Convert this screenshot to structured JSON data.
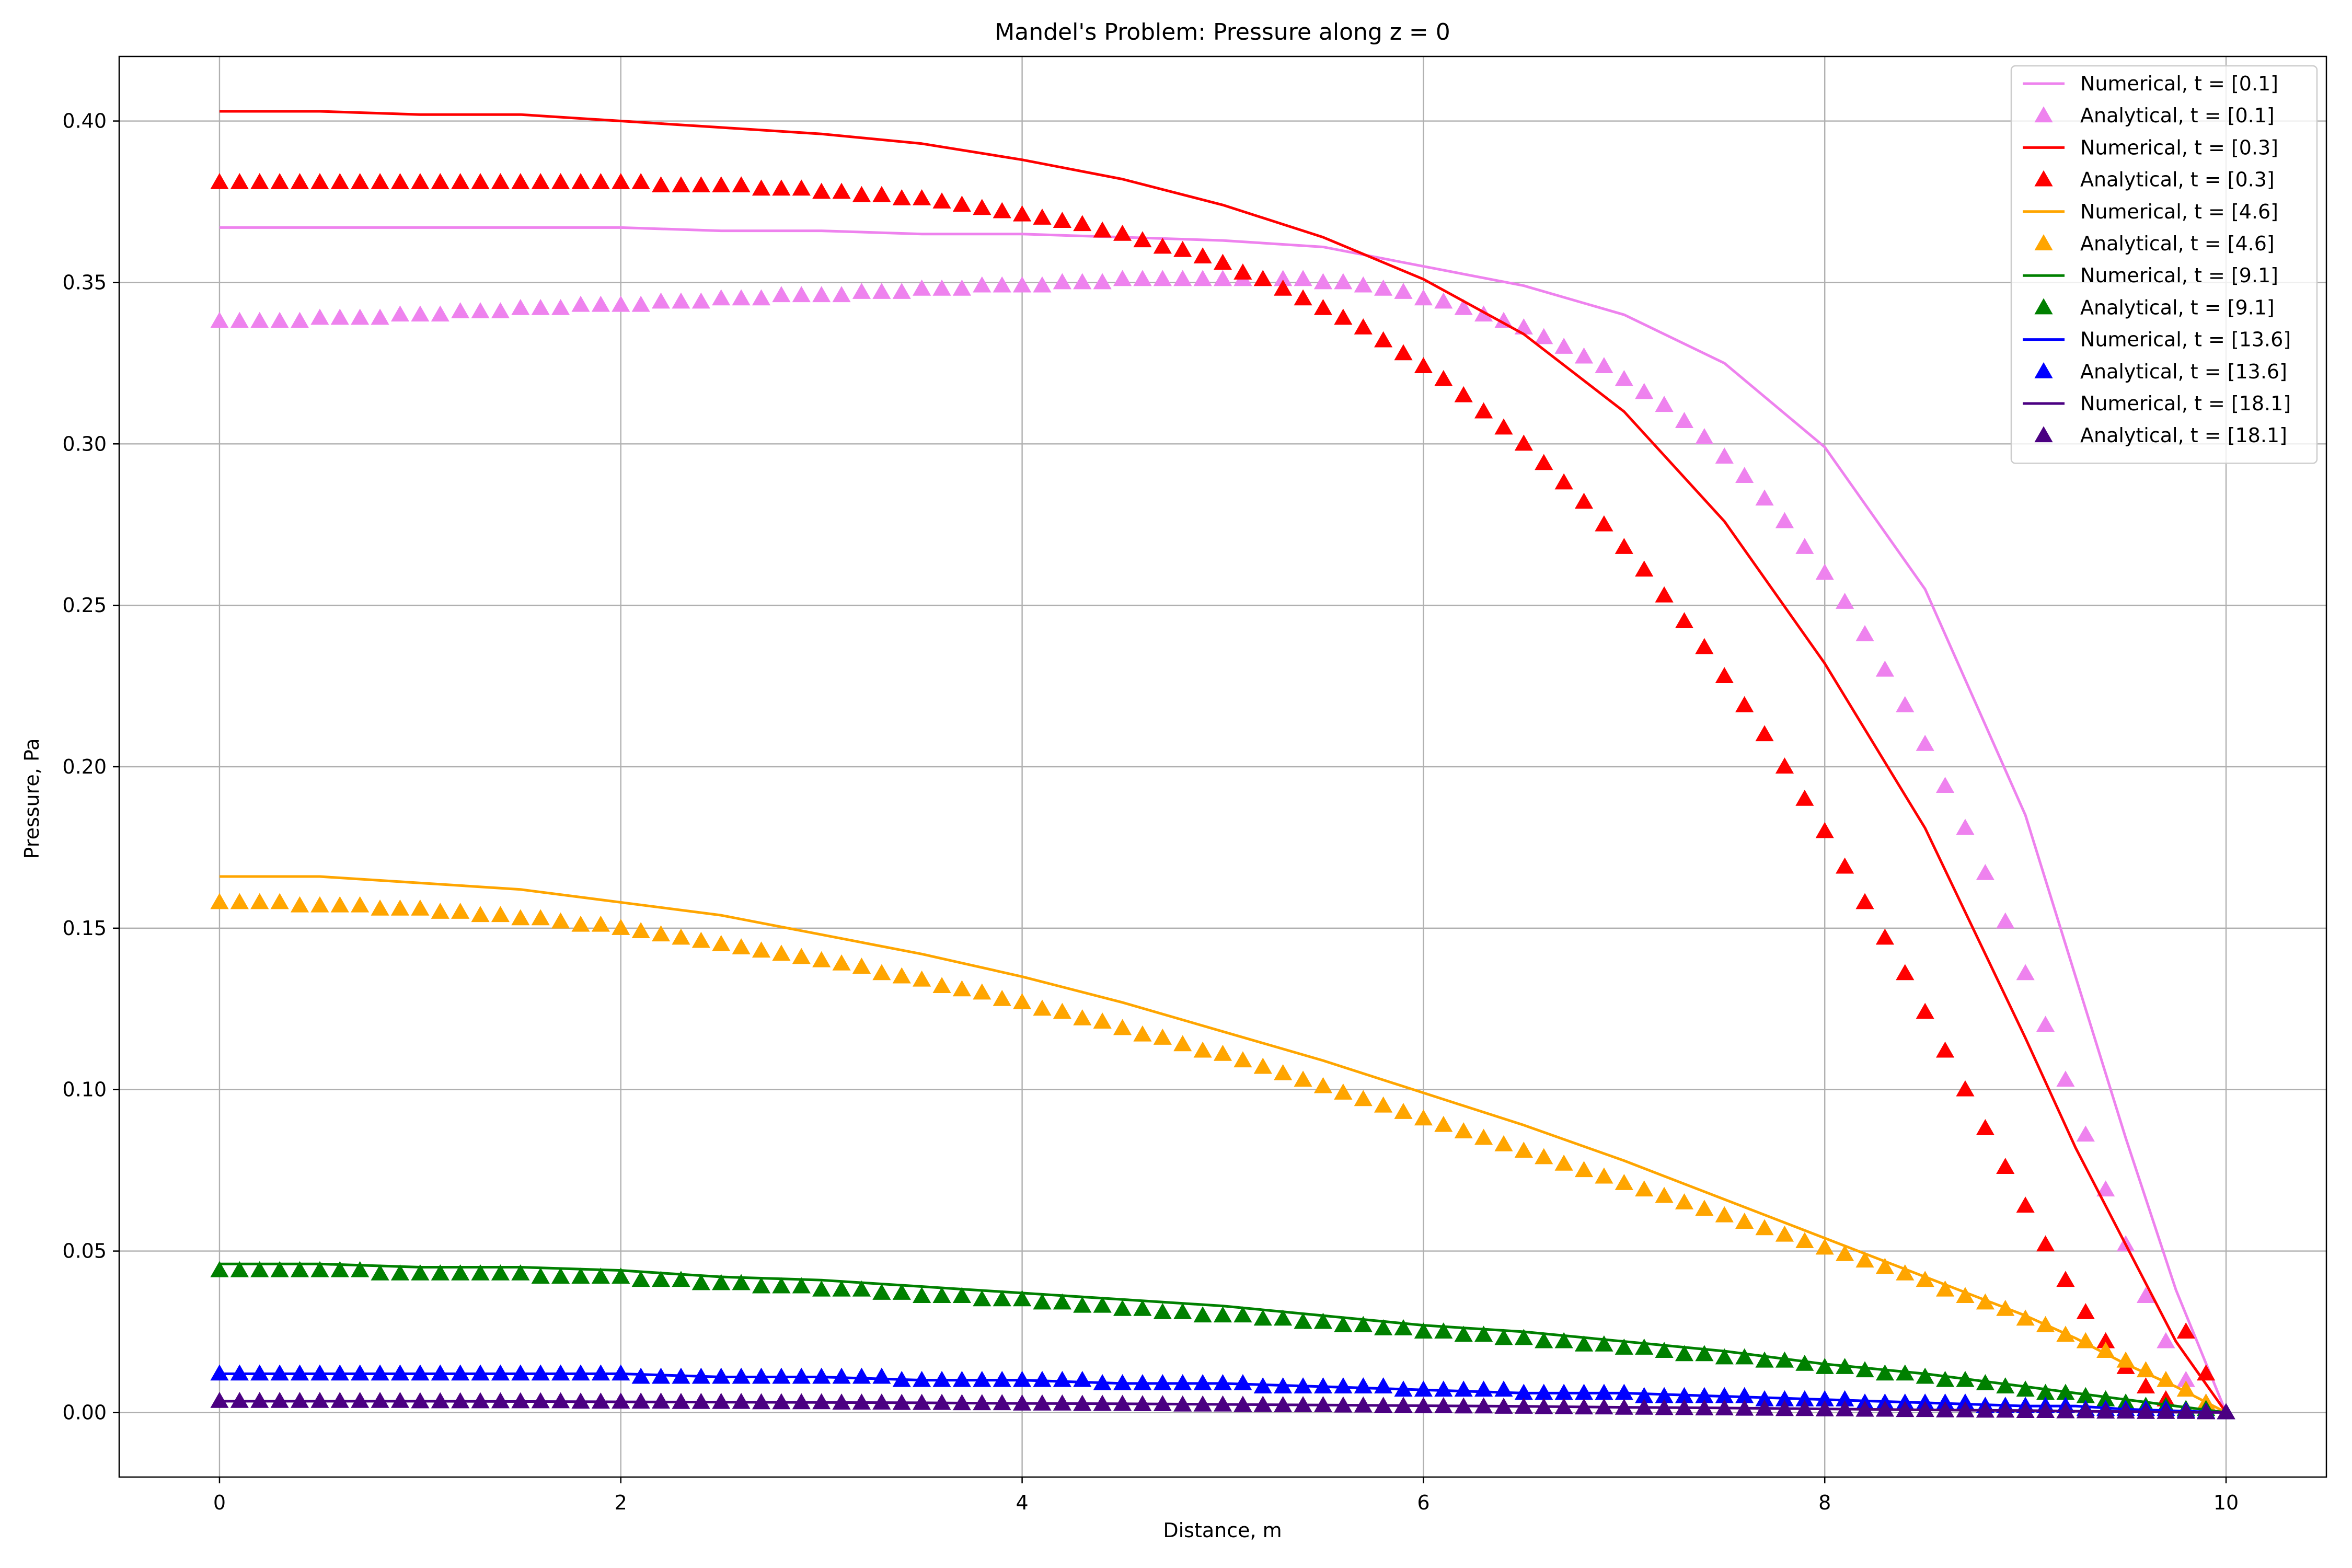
{
  "chart_data": {
    "type": "line",
    "title": "Mandel's Problem: Pressure along z = 0",
    "xlabel": "Distance, m",
    "ylabel": "Pressure, Pa",
    "xlim": [
      -0.5,
      10.5
    ],
    "ylim": [
      -0.02,
      0.42
    ],
    "xticks": [
      0,
      2,
      4,
      6,
      8,
      10
    ],
    "yticks": [
      0.0,
      0.05,
      0.1,
      0.15,
      0.2,
      0.25,
      0.3,
      0.35,
      0.4
    ],
    "xtick_labels": [
      "0",
      "2",
      "4",
      "6",
      "8",
      "10"
    ],
    "ytick_labels": [
      "0.00",
      "0.05",
      "0.10",
      "0.15",
      "0.20",
      "0.25",
      "0.30",
      "0.35",
      "0.40"
    ],
    "grid": true,
    "legend_position": "top-right",
    "numerical_x": [
      0,
      0.5,
      1,
      1.5,
      2,
      2.5,
      3,
      3.5,
      4,
      4.5,
      5,
      5.5,
      6,
      6.5,
      7,
      7.5,
      8,
      8.5,
      9,
      9.25,
      9.5,
      9.75,
      10
    ],
    "analytical_x": [
      0,
      0.1,
      0.2,
      0.3,
      0.4,
      0.5,
      0.6,
      0.7,
      0.8,
      0.9,
      1.0,
      1.1,
      1.2,
      1.3,
      1.4,
      1.5,
      1.6,
      1.7,
      1.8,
      1.9,
      2.0,
      2.1,
      2.2,
      2.3,
      2.4,
      2.5,
      2.6,
      2.7,
      2.8,
      2.9,
      3.0,
      3.1,
      3.2,
      3.3,
      3.4,
      3.5,
      3.6,
      3.7,
      3.8,
      3.9,
      4.0,
      4.1,
      4.2,
      4.3,
      4.4,
      4.5,
      4.6,
      4.7,
      4.8,
      4.9,
      5.0,
      5.1,
      5.2,
      5.3,
      5.4,
      5.5,
      5.6,
      5.7,
      5.8,
      5.9,
      6.0,
      6.1,
      6.2,
      6.3,
      6.4,
      6.5,
      6.6,
      6.7,
      6.8,
      6.9,
      7.0,
      7.1,
      7.2,
      7.3,
      7.4,
      7.5,
      7.6,
      7.7,
      7.8,
      7.9,
      8.0,
      8.1,
      8.2,
      8.3,
      8.4,
      8.5,
      8.6,
      8.7,
      8.8,
      8.9,
      9.0,
      9.1,
      9.2,
      9.3,
      9.4,
      9.5,
      9.6,
      9.7,
      9.8,
      9.9,
      10.0
    ],
    "series": [
      {
        "color": "#ee82ee",
        "numerical_label": "Numerical, t = [0.1]",
        "analytical_label": "Analytical, t = [0.1]",
        "numerical_y": [
          0.367,
          0.367,
          0.367,
          0.367,
          0.367,
          0.366,
          0.366,
          0.365,
          0.365,
          0.364,
          0.363,
          0.361,
          0.355,
          0.349,
          0.34,
          0.325,
          0.299,
          0.255,
          0.185,
          0.135,
          0.085,
          0.038,
          0.0
        ],
        "analytical_y": [
          0.338,
          0.338,
          0.338,
          0.338,
          0.338,
          0.339,
          0.339,
          0.339,
          0.339,
          0.34,
          0.34,
          0.34,
          0.341,
          0.341,
          0.341,
          0.342,
          0.342,
          0.342,
          0.343,
          0.343,
          0.343,
          0.343,
          0.344,
          0.344,
          0.344,
          0.345,
          0.345,
          0.345,
          0.346,
          0.346,
          0.346,
          0.346,
          0.347,
          0.347,
          0.347,
          0.348,
          0.348,
          0.348,
          0.349,
          0.349,
          0.349,
          0.349,
          0.35,
          0.35,
          0.35,
          0.351,
          0.351,
          0.351,
          0.351,
          0.351,
          0.351,
          0.351,
          0.351,
          0.351,
          0.351,
          0.35,
          0.35,
          0.349,
          0.348,
          0.347,
          0.345,
          0.344,
          0.342,
          0.34,
          0.338,
          0.336,
          0.333,
          0.33,
          0.327,
          0.324,
          0.32,
          0.316,
          0.312,
          0.307,
          0.302,
          0.296,
          0.29,
          0.283,
          0.276,
          0.268,
          0.26,
          0.251,
          0.241,
          0.23,
          0.219,
          0.207,
          0.194,
          0.181,
          0.167,
          0.152,
          0.136,
          0.12,
          0.103,
          0.086,
          0.069,
          0.052,
          0.036,
          0.022,
          0.01,
          0.003,
          0.0
        ]
      },
      {
        "color": "#ff0000",
        "numerical_label": "Numerical, t = [0.3]",
        "analytical_label": "Analytical, t = [0.3]",
        "numerical_y": [
          0.403,
          0.403,
          0.402,
          0.402,
          0.4,
          0.398,
          0.396,
          0.393,
          0.388,
          0.382,
          0.374,
          0.364,
          0.351,
          0.334,
          0.31,
          0.276,
          0.232,
          0.181,
          0.116,
          0.082,
          0.052,
          0.022,
          0.0
        ],
        "analytical_y": [
          0.381,
          0.381,
          0.381,
          0.381,
          0.381,
          0.381,
          0.381,
          0.381,
          0.381,
          0.381,
          0.381,
          0.381,
          0.381,
          0.381,
          0.381,
          0.381,
          0.381,
          0.381,
          0.381,
          0.381,
          0.381,
          0.381,
          0.38,
          0.38,
          0.38,
          0.38,
          0.38,
          0.379,
          0.379,
          0.379,
          0.378,
          0.378,
          0.377,
          0.377,
          0.376,
          0.376,
          0.375,
          0.374,
          0.373,
          0.372,
          0.371,
          0.37,
          0.369,
          0.368,
          0.366,
          0.365,
          0.363,
          0.361,
          0.36,
          0.358,
          0.356,
          0.353,
          0.351,
          0.348,
          0.345,
          0.342,
          0.339,
          0.336,
          0.332,
          0.328,
          0.324,
          0.32,
          0.315,
          0.31,
          0.305,
          0.3,
          0.294,
          0.288,
          0.282,
          0.275,
          0.268,
          0.261,
          0.253,
          0.245,
          0.237,
          0.228,
          0.219,
          0.21,
          0.2,
          0.19,
          0.18,
          0.169,
          0.158,
          0.147,
          0.136,
          0.124,
          0.112,
          0.1,
          0.088,
          0.076,
          0.064,
          0.052,
          0.041,
          0.031,
          0.022,
          0.014,
          0.008,
          0.004,
          0.025,
          0.012,
          0.0
        ]
      },
      {
        "color": "#ffa500",
        "numerical_label": "Numerical, t = [4.6]",
        "analytical_label": "Analytical, t = [4.6]",
        "numerical_y": [
          0.166,
          0.166,
          0.164,
          0.162,
          0.158,
          0.154,
          0.148,
          0.142,
          0.135,
          0.127,
          0.118,
          0.109,
          0.099,
          0.089,
          0.078,
          0.066,
          0.054,
          0.042,
          0.03,
          0.023,
          0.015,
          0.008,
          0.0
        ],
        "analytical_y": [
          0.158,
          0.158,
          0.158,
          0.158,
          0.157,
          0.157,
          0.157,
          0.157,
          0.156,
          0.156,
          0.156,
          0.155,
          0.155,
          0.154,
          0.154,
          0.153,
          0.153,
          0.152,
          0.151,
          0.151,
          0.15,
          0.149,
          0.148,
          0.147,
          0.146,
          0.145,
          0.144,
          0.143,
          0.142,
          0.141,
          0.14,
          0.139,
          0.138,
          0.136,
          0.135,
          0.134,
          0.132,
          0.131,
          0.13,
          0.128,
          0.127,
          0.125,
          0.124,
          0.122,
          0.121,
          0.119,
          0.117,
          0.116,
          0.114,
          0.112,
          0.111,
          0.109,
          0.107,
          0.105,
          0.103,
          0.101,
          0.099,
          0.097,
          0.095,
          0.093,
          0.091,
          0.089,
          0.087,
          0.085,
          0.083,
          0.081,
          0.079,
          0.077,
          0.075,
          0.073,
          0.071,
          0.069,
          0.067,
          0.065,
          0.063,
          0.061,
          0.059,
          0.057,
          0.055,
          0.053,
          0.051,
          0.049,
          0.047,
          0.045,
          0.043,
          0.041,
          0.038,
          0.036,
          0.034,
          0.032,
          0.029,
          0.027,
          0.024,
          0.022,
          0.019,
          0.016,
          0.013,
          0.01,
          0.007,
          0.003,
          0.0
        ]
      },
      {
        "color": "#008000",
        "numerical_label": "Numerical, t = [9.1]",
        "analytical_label": "Analytical, t = [9.1]",
        "numerical_y": [
          0.046,
          0.046,
          0.045,
          0.045,
          0.044,
          0.042,
          0.041,
          0.039,
          0.037,
          0.035,
          0.033,
          0.03,
          0.027,
          0.025,
          0.022,
          0.019,
          0.015,
          0.012,
          0.008,
          0.006,
          0.004,
          0.002,
          0.0
        ],
        "analytical_y": [
          0.044,
          0.044,
          0.044,
          0.044,
          0.044,
          0.044,
          0.044,
          0.044,
          0.043,
          0.043,
          0.043,
          0.043,
          0.043,
          0.043,
          0.043,
          0.043,
          0.042,
          0.042,
          0.042,
          0.042,
          0.042,
          0.041,
          0.041,
          0.041,
          0.04,
          0.04,
          0.04,
          0.039,
          0.039,
          0.039,
          0.038,
          0.038,
          0.038,
          0.037,
          0.037,
          0.036,
          0.036,
          0.036,
          0.035,
          0.035,
          0.035,
          0.034,
          0.034,
          0.033,
          0.033,
          0.032,
          0.032,
          0.031,
          0.031,
          0.03,
          0.03,
          0.03,
          0.029,
          0.029,
          0.028,
          0.028,
          0.027,
          0.027,
          0.026,
          0.026,
          0.025,
          0.025,
          0.024,
          0.024,
          0.023,
          0.023,
          0.022,
          0.022,
          0.021,
          0.021,
          0.02,
          0.02,
          0.019,
          0.018,
          0.018,
          0.017,
          0.017,
          0.016,
          0.016,
          0.015,
          0.014,
          0.014,
          0.013,
          0.012,
          0.012,
          0.011,
          0.01,
          0.01,
          0.009,
          0.008,
          0.007,
          0.006,
          0.006,
          0.005,
          0.004,
          0.003,
          0.002,
          0.002,
          0.001,
          0.001,
          0.0
        ]
      },
      {
        "color": "#0000ff",
        "numerical_label": "Numerical, t = [13.6]",
        "analytical_label": "Analytical, t = [13.6]",
        "numerical_y": [
          0.012,
          0.012,
          0.012,
          0.012,
          0.012,
          0.011,
          0.011,
          0.01,
          0.01,
          0.009,
          0.009,
          0.008,
          0.007,
          0.006,
          0.006,
          0.005,
          0.004,
          0.003,
          0.002,
          0.002,
          0.001,
          0.0005,
          0.0
        ],
        "analytical_y": [
          0.012,
          0.012,
          0.012,
          0.012,
          0.012,
          0.012,
          0.012,
          0.012,
          0.012,
          0.012,
          0.012,
          0.012,
          0.012,
          0.012,
          0.012,
          0.012,
          0.012,
          0.012,
          0.012,
          0.012,
          0.012,
          0.011,
          0.011,
          0.011,
          0.011,
          0.011,
          0.011,
          0.011,
          0.011,
          0.011,
          0.011,
          0.011,
          0.011,
          0.011,
          0.01,
          0.01,
          0.01,
          0.01,
          0.01,
          0.01,
          0.01,
          0.01,
          0.01,
          0.01,
          0.009,
          0.009,
          0.009,
          0.009,
          0.009,
          0.009,
          0.009,
          0.009,
          0.008,
          0.008,
          0.008,
          0.008,
          0.008,
          0.008,
          0.008,
          0.007,
          0.007,
          0.007,
          0.007,
          0.007,
          0.007,
          0.006,
          0.006,
          0.006,
          0.006,
          0.006,
          0.006,
          0.005,
          0.005,
          0.005,
          0.005,
          0.005,
          0.005,
          0.004,
          0.004,
          0.004,
          0.004,
          0.004,
          0.003,
          0.003,
          0.003,
          0.003,
          0.003,
          0.003,
          0.002,
          0.002,
          0.002,
          0.002,
          0.002,
          0.001,
          0.001,
          0.001,
          0.001,
          0.001,
          0.0005,
          0.0002,
          0.0
        ]
      },
      {
        "color": "#4b0082",
        "numerical_label": "Numerical, t = [18.1]",
        "analytical_label": "Analytical, t = [18.1]",
        "numerical_y": [
          0.0035,
          0.0035,
          0.0035,
          0.0034,
          0.0033,
          0.0032,
          0.0031,
          0.003,
          0.0028,
          0.0027,
          0.0025,
          0.0023,
          0.0021,
          0.0019,
          0.0016,
          0.0014,
          0.0011,
          0.0008,
          0.0006,
          0.0004,
          0.0003,
          0.0001,
          0.0
        ],
        "analytical_y": [
          0.0035,
          0.0035,
          0.0035,
          0.0035,
          0.0035,
          0.0035,
          0.0035,
          0.0035,
          0.0035,
          0.0035,
          0.0034,
          0.0034,
          0.0034,
          0.0034,
          0.0034,
          0.0034,
          0.0034,
          0.0034,
          0.0033,
          0.0033,
          0.0033,
          0.0033,
          0.0033,
          0.0032,
          0.0032,
          0.0032,
          0.0032,
          0.0031,
          0.0031,
          0.0031,
          0.0031,
          0.003,
          0.003,
          0.003,
          0.0029,
          0.0029,
          0.0029,
          0.0028,
          0.0028,
          0.0028,
          0.0027,
          0.0027,
          0.0027,
          0.0026,
          0.0026,
          0.0026,
          0.0025,
          0.0025,
          0.0024,
          0.0024,
          0.0024,
          0.0023,
          0.0023,
          0.0022,
          0.0022,
          0.0022,
          0.0021,
          0.0021,
          0.002,
          0.002,
          0.0019,
          0.0019,
          0.0018,
          0.0018,
          0.0017,
          0.0017,
          0.0016,
          0.0016,
          0.0015,
          0.0015,
          0.0014,
          0.0014,
          0.0013,
          0.0013,
          0.0012,
          0.0012,
          0.0011,
          0.0011,
          0.001,
          0.001,
          0.0009,
          0.0009,
          0.0008,
          0.0008,
          0.0007,
          0.0007,
          0.0006,
          0.0006,
          0.0005,
          0.0005,
          0.0004,
          0.0004,
          0.0003,
          0.0003,
          0.0002,
          0.0002,
          0.0001,
          0.0001,
          0.0001,
          0.0,
          0.0
        ]
      }
    ]
  }
}
